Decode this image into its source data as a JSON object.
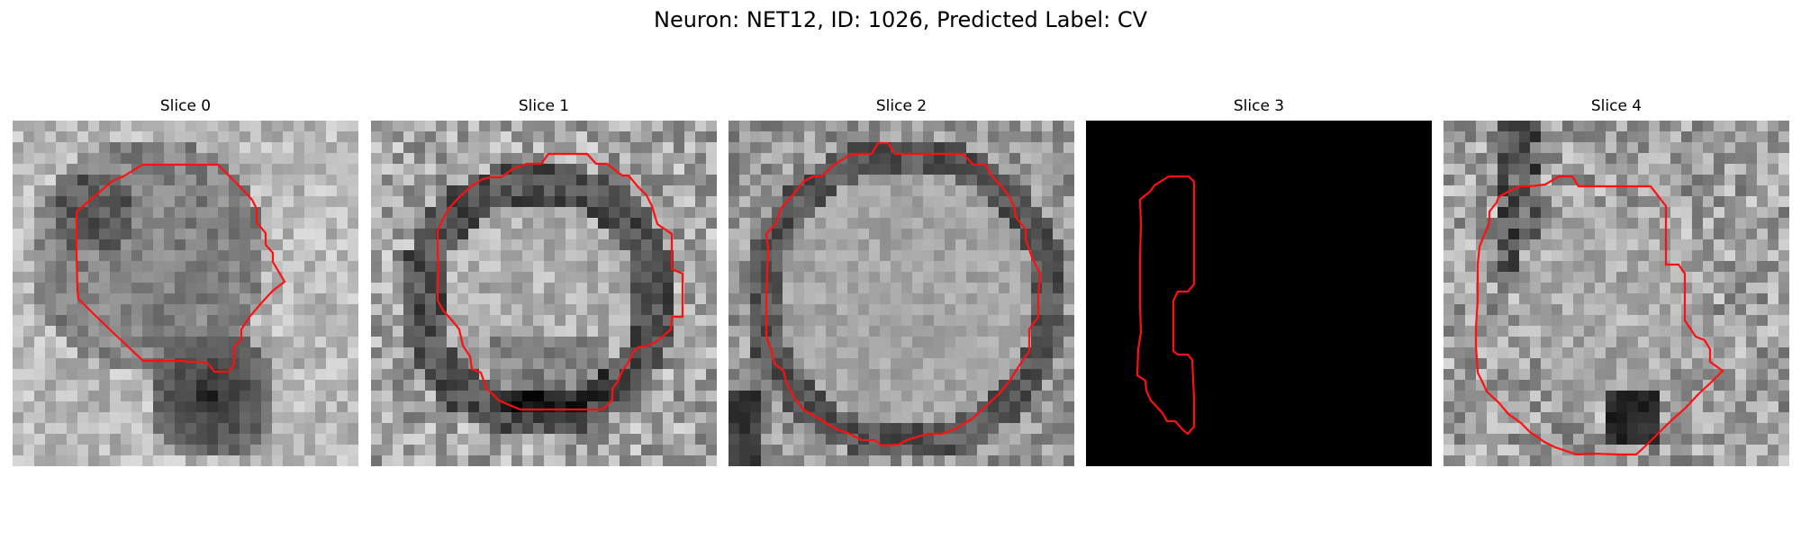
{
  "title": "Neuron: NET12, ID: 1026, Predicted Label: CV",
  "colors": {
    "contour": "#ff1010",
    "colormap": "gray"
  },
  "panels": [
    {
      "label": "Slice 0"
    },
    {
      "label": "Slice 1"
    },
    {
      "label": "Slice 2"
    },
    {
      "label": "Slice 3"
    },
    {
      "label": "Slice 4"
    }
  ]
}
